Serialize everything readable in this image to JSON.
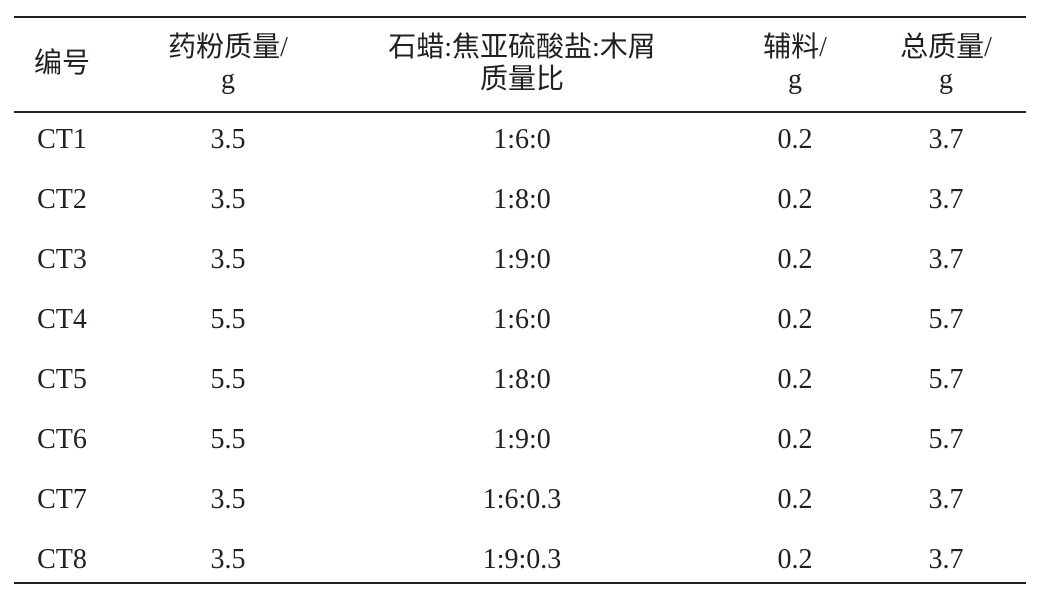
{
  "table": {
    "header": [
      [
        "编号"
      ],
      [
        "药粉质量/",
        "g"
      ],
      [
        "石蜡:焦亚硫酸盐:木屑",
        "质量比"
      ],
      [
        "辅料/",
        "g"
      ],
      [
        "总质量/",
        "g"
      ]
    ],
    "rows": [
      [
        "CT1",
        "3.5",
        "1:6:0",
        "0.2",
        "3.7"
      ],
      [
        "CT2",
        "3.5",
        "1:8:0",
        "0.2",
        "3.7"
      ],
      [
        "CT3",
        "3.5",
        "1:9:0",
        "0.2",
        "3.7"
      ],
      [
        "CT4",
        "5.5",
        "1:6:0",
        "0.2",
        "5.7"
      ],
      [
        "CT5",
        "5.5",
        "1:8:0",
        "0.2",
        "5.7"
      ],
      [
        "CT6",
        "5.5",
        "1:9:0",
        "0.2",
        "5.7"
      ],
      [
        "CT7",
        "3.5",
        "1:6:0.3",
        "0.2",
        "3.7"
      ],
      [
        "CT8",
        "3.5",
        "1:9:0.3",
        "0.2",
        "3.7"
      ]
    ]
  }
}
